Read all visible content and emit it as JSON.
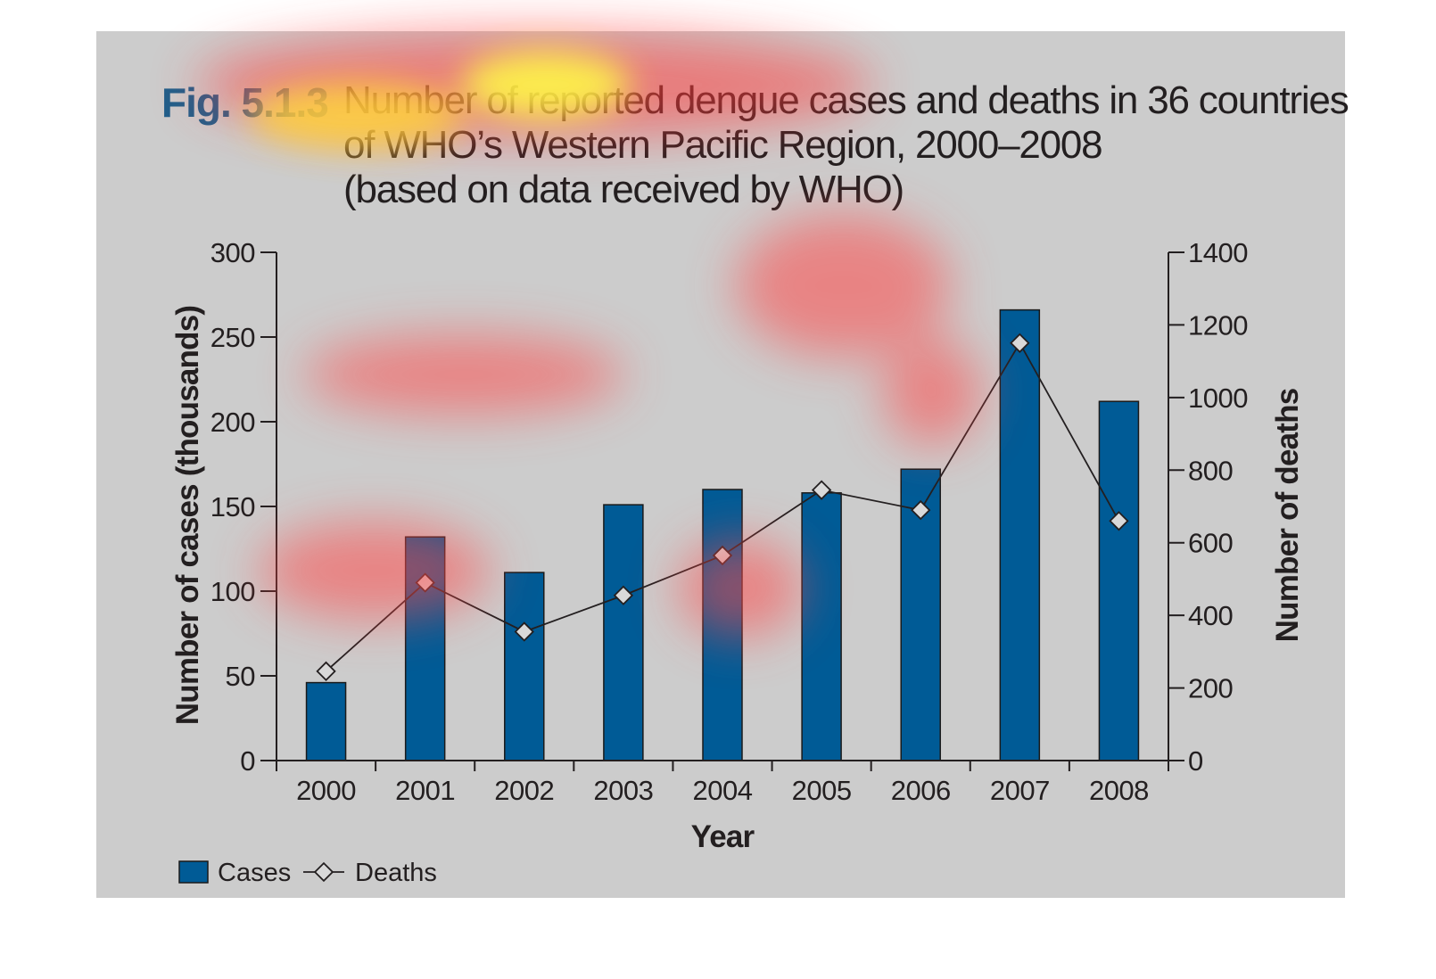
{
  "figure": {
    "label": "Fig. 5.1.3",
    "title_line1": "Number of reported dengue cases and deaths in 36 countries",
    "title_line2": "of WHO’s Western Pacific Region, 2000–2008",
    "title_line3": "(based on data received by WHO)"
  },
  "colors": {
    "panel": "#cccccc",
    "bar": "#005b96",
    "line": "#231f20",
    "marker_fill": "#d9d9d9",
    "label": "#1f5f8b"
  },
  "chart_data": {
    "type": "bar",
    "categories": [
      "2000",
      "2001",
      "2002",
      "2003",
      "2004",
      "2005",
      "2006",
      "2007",
      "2008"
    ],
    "series": [
      {
        "name": "Cases",
        "type": "bar",
        "axis": "left",
        "values": [
          46,
          132,
          111,
          151,
          160,
          158,
          172,
          266,
          212
        ]
      },
      {
        "name": "Deaths",
        "type": "line",
        "axis": "right",
        "marker": "diamond",
        "values": [
          246,
          490,
          355,
          455,
          565,
          745,
          690,
          1150,
          660
        ]
      }
    ],
    "xlabel": "Year",
    "ylabel": "Number of cases (thousands)",
    "y2label": "Number of deaths",
    "ylim": [
      0,
      300
    ],
    "y2lim": [
      0,
      1400
    ],
    "yticks": [
      "0",
      "50",
      "100",
      "150",
      "200",
      "250",
      "300"
    ],
    "y2ticks": [
      "0",
      "200",
      "400",
      "600",
      "800",
      "1000",
      "1200",
      "1400"
    ],
    "legend": [
      "Cases",
      "Deaths"
    ],
    "legend_position": "bottom-left",
    "grid": false
  },
  "overlay": {
    "type": "attention-heatmap"
  }
}
